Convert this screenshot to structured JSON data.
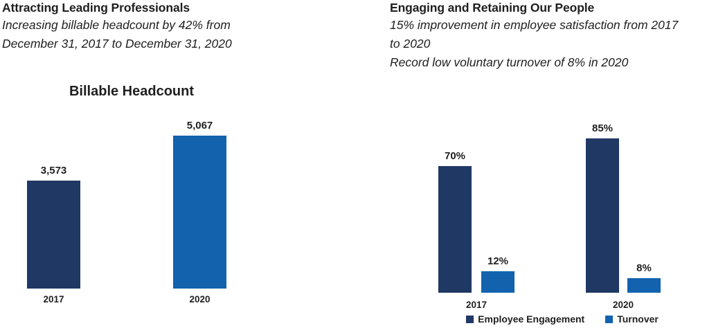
{
  "left_section": {
    "heading": "Attracting Leading Professionals",
    "subtitle_lines": [
      "Increasing billable headcount by 42% from",
      "December 31, 2017 to December 31, 2020"
    ]
  },
  "right_section": {
    "heading": "Engaging and Retaining Our People",
    "subtitle_lines": [
      "15% improvement in employee satisfaction from 2017",
      "to 2020",
      "Record low voluntary turnover of 8% in 2020"
    ]
  },
  "colors": {
    "navy": "#1F3864",
    "blue": "#1262AE",
    "text": "#1F1F1F",
    "background": "#FFFFFF"
  },
  "chart_data": [
    {
      "type": "bar",
      "title": "Billable Headcount",
      "xlabel": "",
      "ylabel": "",
      "categories": [
        "2017",
        "2020"
      ],
      "values": [
        3573,
        5067
      ],
      "data_labels": [
        "3,573",
        "5,067"
      ],
      "colors": [
        "#1F3864",
        "#1262AE"
      ],
      "ylim": [
        0,
        5500
      ],
      "grid": false,
      "axes_visible": false,
      "legend_position": "none"
    },
    {
      "type": "bar",
      "title": "",
      "xlabel": "",
      "ylabel": "",
      "categories": [
        "2017",
        "2020"
      ],
      "series": [
        {
          "name": "Employee Engagement",
          "color": "#1F3864",
          "values": [
            70,
            85
          ],
          "data_labels": [
            "70%",
            "85%"
          ]
        },
        {
          "name": "Turnover",
          "color": "#1262AE",
          "values": [
            12,
            8
          ],
          "data_labels": [
            "12%",
            "8%"
          ]
        }
      ],
      "ylim": [
        0,
        90
      ],
      "grid": false,
      "axes_visible": false,
      "legend_position": "bottom"
    }
  ]
}
